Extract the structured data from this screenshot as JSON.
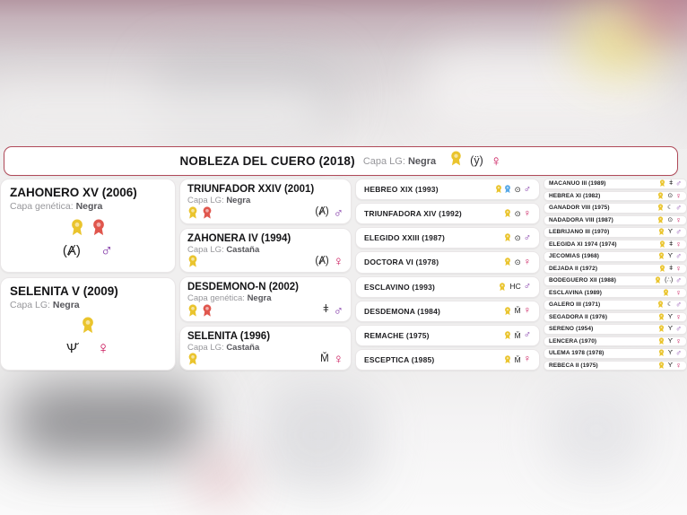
{
  "colors": {
    "header_border": "#b04a59",
    "award_gold": "#eac42d",
    "award_red": "#e0564d",
    "award_blue": "#57a8e6",
    "male": "#7c2fa3",
    "female": "#c91358"
  },
  "header": {
    "title": "NOBLEZA DEL CUERO (2018)",
    "capa_label": "Capa LG:",
    "capa_value": "Negra",
    "awards": [
      "gold"
    ],
    "brand": "(ӱ)",
    "gender": "female"
  },
  "pedigree": {
    "gen1": [
      {
        "name": "ZAHONERO XV (2006)",
        "capa_label": "Capa genética:",
        "capa_value": "Negra",
        "awards": [
          "gold",
          "red"
        ],
        "brand": "(Ⱥ)",
        "gender": "male"
      },
      {
        "name": "SELENITA V (2009)",
        "capa_label": "Capa LG:",
        "capa_value": "Negra",
        "awards": [
          "gold"
        ],
        "brand": "Ѱ̆",
        "gender": "female"
      }
    ],
    "gen2": [
      {
        "name": "TRIUNFADOR XXIV (2001)",
        "capa_label": "Capa LG:",
        "capa_value": "Negra",
        "awards": [
          "gold",
          "red"
        ],
        "brand": "(Ⱥ)",
        "gender": "male"
      },
      {
        "name": "ZAHONERA IV (1994)",
        "capa_label": "Capa LG:",
        "capa_value": "Castaña",
        "awards": [
          "gold"
        ],
        "brand": "(Ⱥ)",
        "gender": "female"
      },
      {
        "name": "DESDEMONO-N (2002)",
        "capa_label": "Capa genética:",
        "capa_value": "Negra",
        "awards": [
          "gold",
          "red"
        ],
        "brand": "ǂ",
        "gender": "male"
      },
      {
        "name": "SELENITA (1996)",
        "capa_label": "Capa LG:",
        "capa_value": "Castaña",
        "awards": [
          "gold"
        ],
        "brand": "M̌",
        "gender": "female"
      }
    ],
    "gen3": [
      {
        "name": "HEBREO XIX (1993)",
        "awards": [
          "gold",
          "blue"
        ],
        "brand": "⊙",
        "gender": "male"
      },
      {
        "name": "TRIUNFADORA XIV (1992)",
        "awards": [
          "gold"
        ],
        "brand": "⊙",
        "gender": "female"
      },
      {
        "name": "ELEGIDO XXIII (1987)",
        "awards": [
          "gold"
        ],
        "brand": "⊙",
        "gender": "male"
      },
      {
        "name": "DOCTORA VI (1978)",
        "awards": [
          "gold"
        ],
        "brand": "⊙",
        "gender": "female"
      },
      {
        "name": "ESCLAVINO (1993)",
        "awards": [
          "gold"
        ],
        "brand": "HC",
        "gender": "male"
      },
      {
        "name": "DESDEMONA (1984)",
        "awards": [
          "gold"
        ],
        "brand": "M̌",
        "gender": "female"
      },
      {
        "name": "REMACHE (1975)",
        "awards": [
          "gold"
        ],
        "brand": "M̌",
        "gender": "male"
      },
      {
        "name": "ESCEPTICA (1985)",
        "awards": [
          "gold"
        ],
        "brand": "M̌",
        "gender": "female"
      }
    ],
    "gen4": [
      {
        "name": "MACANUO III (1989)",
        "awards": [
          "gold"
        ],
        "brand": "ǂ",
        "gender": "male"
      },
      {
        "name": "HEBREA XI (1982)",
        "awards": [
          "gold"
        ],
        "brand": "⊙",
        "gender": "female"
      },
      {
        "name": "GANADOR VIII (1975)",
        "awards": [
          "gold"
        ],
        "brand": "☾",
        "gender": "male"
      },
      {
        "name": "NADADORA VIII (1987)",
        "awards": [
          "gold"
        ],
        "brand": "⊙",
        "gender": "female"
      },
      {
        "name": "LEBRIJANO III (1970)",
        "awards": [
          "gold"
        ],
        "brand": "Ƴ",
        "gender": "male"
      },
      {
        "name": "ELEGIDA XI 1974 (1974)",
        "awards": [
          "gold"
        ],
        "brand": "ǂ",
        "gender": "female"
      },
      {
        "name": "JECOMIAS (1968)",
        "awards": [
          "gold"
        ],
        "brand": "Ƴ",
        "gender": "male"
      },
      {
        "name": "DEJADA II (1972)",
        "awards": [
          "gold"
        ],
        "brand": "ǂ",
        "gender": "female"
      },
      {
        "name": "BODEGUERO XII (1988)",
        "awards": [
          "gold"
        ],
        "brand": "(∴)",
        "gender": "male"
      },
      {
        "name": "ESCLAVINA (1989)",
        "awards": [
          "gold"
        ],
        "brand": "",
        "gender": "female"
      },
      {
        "name": "GALERO III (1971)",
        "awards": [
          "gold"
        ],
        "brand": "☾",
        "gender": "male"
      },
      {
        "name": "SEGADORA II (1976)",
        "awards": [
          "gold"
        ],
        "brand": "Ƴ",
        "gender": "female"
      },
      {
        "name": "SERENO (1954)",
        "awards": [
          "gold"
        ],
        "brand": "Ƴ",
        "gender": "male"
      },
      {
        "name": "LENCERA (1970)",
        "awards": [
          "gold"
        ],
        "brand": "Ƴ",
        "gender": "female"
      },
      {
        "name": "ULEMA 1978 (1978)",
        "awards": [
          "gold"
        ],
        "brand": "Ƴ",
        "gender": "male"
      },
      {
        "name": "REBECA II (1975)",
        "awards": [
          "gold"
        ],
        "brand": "Ƴ",
        "gender": "female"
      }
    ]
  }
}
